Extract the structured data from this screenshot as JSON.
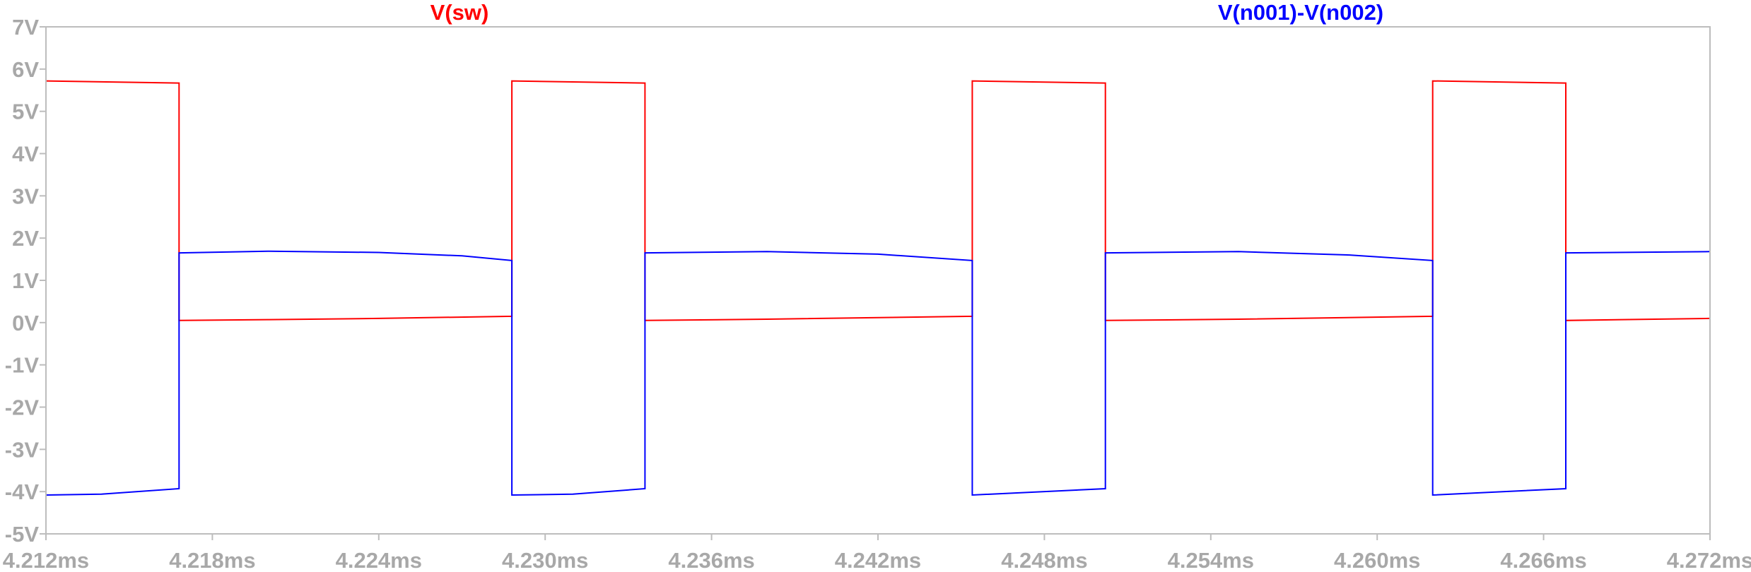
{
  "chart_data": {
    "type": "line",
    "title": "",
    "xlabel": "",
    "ylabel": "",
    "xlim": [
      4.212,
      4.272
    ],
    "ylim": [
      -5,
      7
    ],
    "grid": false,
    "x_ticks": [
      4.212,
      4.218,
      4.224,
      4.23,
      4.236,
      4.242,
      4.248,
      4.254,
      4.26,
      4.266,
      4.272
    ],
    "x_tick_labels": [
      "4.212ms",
      "4.218ms",
      "4.224ms",
      "4.230ms",
      "4.236ms",
      "4.242ms",
      "4.248ms",
      "4.254ms",
      "4.260ms",
      "4.266ms",
      "4.272ms"
    ],
    "y_ticks": [
      7,
      6,
      5,
      4,
      3,
      2,
      1,
      0,
      -1,
      -2,
      -3,
      -4,
      -5
    ],
    "y_tick_labels": [
      "7V",
      "6V",
      "5V",
      "4V",
      "3V",
      "2V",
      "1V",
      "0V",
      "-1V",
      "-2V",
      "-3V",
      "-4V",
      "-5V"
    ],
    "series": [
      {
        "name": "V(sw)",
        "color": "#ff0000",
        "x": [
          4.212,
          4.2168,
          4.2168,
          4.22,
          4.224,
          4.2288,
          4.2288,
          4.2336,
          4.2336,
          4.238,
          4.2454,
          4.2454,
          4.2502,
          4.2502,
          4.255,
          4.262,
          4.262,
          4.2668,
          4.2668,
          4.272
        ],
        "y": [
          5.72,
          5.67,
          0.05,
          0.07,
          0.1,
          0.15,
          5.72,
          5.67,
          0.05,
          0.08,
          0.15,
          5.72,
          5.67,
          0.05,
          0.08,
          0.15,
          5.72,
          5.67,
          0.05,
          0.1
        ]
      },
      {
        "name": "V(n001)-V(n002)",
        "color": "#0000ff",
        "x": [
          4.212,
          4.214,
          4.2168,
          4.2168,
          4.22,
          4.224,
          4.227,
          4.2288,
          4.2288,
          4.231,
          4.2336,
          4.2336,
          4.238,
          4.242,
          4.2454,
          4.2454,
          4.2502,
          4.2502,
          4.255,
          4.259,
          4.262,
          4.262,
          4.2668,
          4.2668,
          4.272
        ],
        "y": [
          -4.08,
          -4.06,
          -3.93,
          1.65,
          1.69,
          1.66,
          1.58,
          1.47,
          -4.08,
          -4.06,
          -3.93,
          1.65,
          1.68,
          1.62,
          1.47,
          -4.08,
          -3.93,
          1.65,
          1.68,
          1.6,
          1.47,
          -4.08,
          -3.93,
          1.65,
          1.68
        ]
      }
    ]
  }
}
